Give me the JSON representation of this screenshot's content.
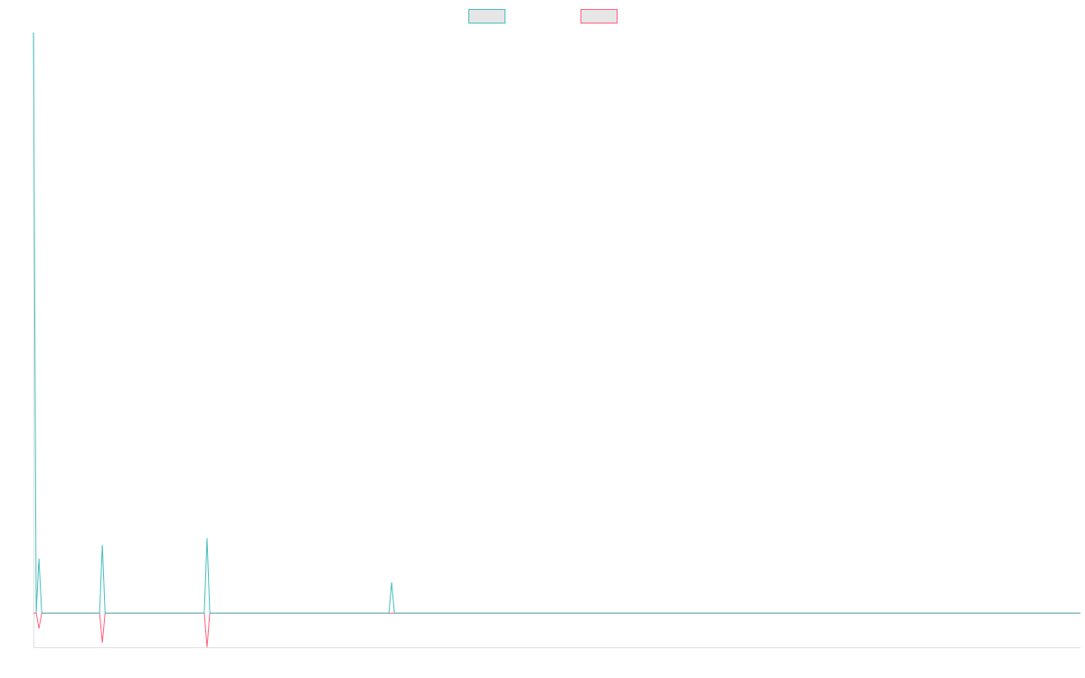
{
  "chart_data": {
    "type": "line",
    "x": [
      0,
      1,
      2,
      3,
      24,
      25,
      26,
      62,
      63,
      64,
      129,
      130,
      131,
      380
    ],
    "series": [
      {
        "color": "#4bc0c0",
        "values": [
          17,
          0,
          1.6,
          0,
          0,
          2.0,
          0,
          0,
          2.2,
          0,
          0,
          0.9,
          0,
          0
        ]
      },
      {
        "color": "#ff6384",
        "values": [
          0,
          0,
          -0.45,
          0,
          0,
          -0.87,
          0,
          0,
          -1.0,
          0,
          0,
          0,
          0,
          0
        ]
      }
    ],
    "xlim": [
      0,
      380
    ],
    "ylim": [
      -1,
      17
    ],
    "legend": "top"
  }
}
